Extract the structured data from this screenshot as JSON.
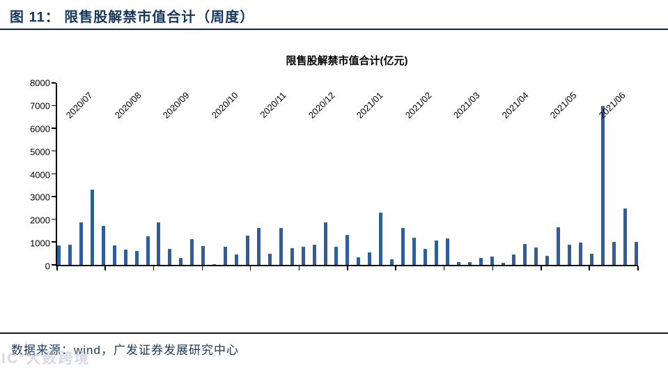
{
  "header": {
    "title": "图  11：  限售股解禁市值合计（周度）"
  },
  "chart": {
    "title": "限售股解禁市值合计(亿元)"
  },
  "chart_data": {
    "type": "bar",
    "title": "限售股解禁市值合计(亿元)",
    "xlabel": "",
    "ylabel": "",
    "ylim": [
      0,
      8000
    ],
    "y_ticks": [
      0,
      1000,
      2000,
      3000,
      4000,
      5000,
      6000,
      7000,
      8000
    ],
    "x_tick_labels": [
      "2020/07",
      "2020/08",
      "2020/09",
      "2020/10",
      "2020/11",
      "2020/12",
      "2021/01",
      "2021/02",
      "2021/03",
      "2021/04",
      "2021/05",
      "2021/06"
    ],
    "x_unit": "week",
    "n_bars": 53,
    "grid": false,
    "legend": "none",
    "bar_color": "#2E5F9C",
    "values": [
      850,
      890,
      1880,
      3320,
      1730,
      850,
      680,
      620,
      1260,
      1860,
      700,
      300,
      1120,
      820,
      30,
      800,
      460,
      1280,
      1630,
      500,
      1620,
      730,
      810,
      890,
      1880,
      810,
      1320,
      330,
      560,
      2290,
      250,
      1620,
      1190,
      700,
      1060,
      1150,
      130,
      110,
      300,
      370,
      90,
      460,
      930,
      760,
      390,
      1670,
      890,
      990,
      490,
      7000,
      1010,
      2490,
      1020
    ]
  },
  "footer": {
    "source": "数据来源：wind，广发证券发展研究中心"
  },
  "watermark": {
    "text": "IC°大数跨境"
  },
  "colors": {
    "accent_navy": "#17375E",
    "bar_blue": "#2E5F9C",
    "axis_black": "#000000"
  }
}
